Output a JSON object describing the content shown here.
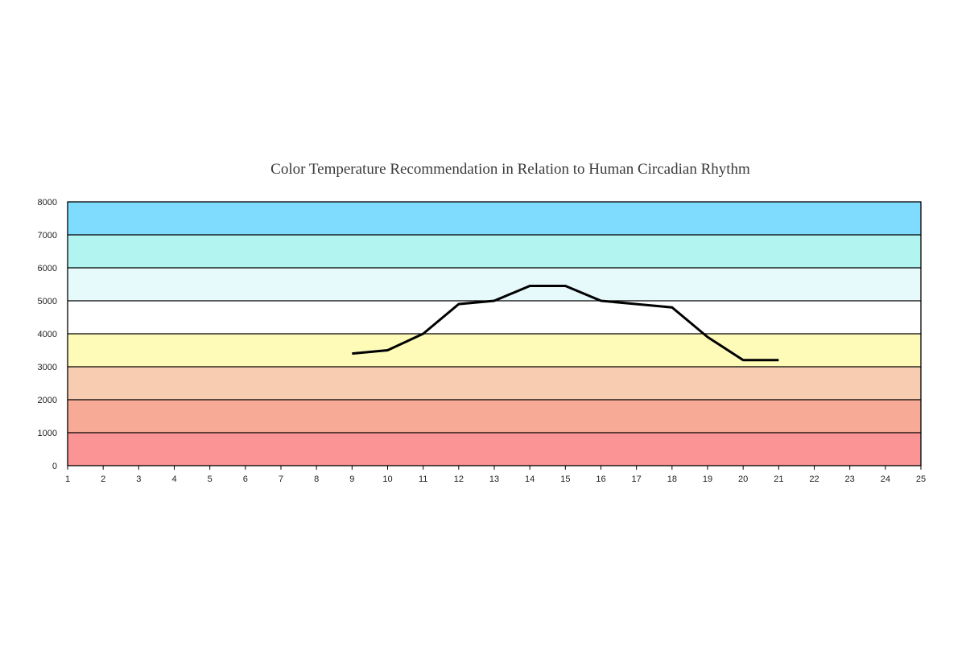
{
  "chart_data": {
    "type": "line",
    "title": "Color Temperature Recommendation in Relation to Human Circadian Rhythm",
    "xlabel": "",
    "ylabel": "",
    "xlim": [
      1,
      25
    ],
    "ylim": [
      0,
      8000
    ],
    "x_ticks": [
      1,
      2,
      3,
      4,
      5,
      6,
      7,
      8,
      9,
      10,
      11,
      12,
      13,
      14,
      15,
      16,
      17,
      18,
      19,
      20,
      21,
      22,
      23,
      24,
      25
    ],
    "y_ticks": [
      0,
      1000,
      2000,
      3000,
      4000,
      5000,
      6000,
      7000,
      8000
    ],
    "grid": "horizontal",
    "legend": "none",
    "bands": [
      {
        "from": 0,
        "to": 1000,
        "color": "#fb9494"
      },
      {
        "from": 1000,
        "to": 2000,
        "color": "#f7ab96"
      },
      {
        "from": 2000,
        "to": 3000,
        "color": "#f7ccb0"
      },
      {
        "from": 3000,
        "to": 4000,
        "color": "#fdfbb7"
      },
      {
        "from": 4000,
        "to": 5000,
        "color": "#ffffff"
      },
      {
        "from": 5000,
        "to": 6000,
        "color": "#e6f9fb"
      },
      {
        "from": 6000,
        "to": 7000,
        "color": "#b2f4ef"
      },
      {
        "from": 7000,
        "to": 8000,
        "color": "#80dcfe"
      }
    ],
    "series": [
      {
        "color": "#000000",
        "x": [
          9,
          10,
          11,
          12,
          13,
          14,
          15,
          16,
          17,
          18,
          19,
          20,
          21
        ],
        "values": [
          3400,
          3500,
          4000,
          4900,
          5000,
          5450,
          5450,
          5000,
          4900,
          4800,
          3900,
          3200,
          3200
        ]
      }
    ]
  }
}
